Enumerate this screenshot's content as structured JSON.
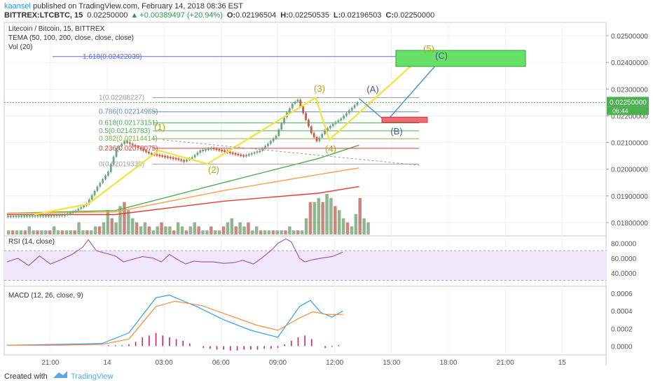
{
  "header": {
    "author": "kaansel",
    "published_text": " published on TradingView.com, February 14, 2018 08:36 EST",
    "symbol": "BITTREX:LTCBTC, 15",
    "last": "0.02250000",
    "change": "+0.00389497 (+20.94%)",
    "o_label": "O:",
    "o": "0.02196504",
    "h_label": "H:",
    "h": "0.02250535",
    "l_label": "L:",
    "l": "0.02196503",
    "c_label": "C:",
    "c": "0.02250000"
  },
  "legend": {
    "title": "Litecoin / Bitcoin, 15, BITTREX",
    "tema": "TEMA (50, 100, 200, close, close, close)",
    "vol": "Vol (20)"
  },
  "footer": {
    "created_with": "Created with",
    "brand": "TradingView"
  },
  "colors": {
    "up": "#6ba583",
    "down": "#d75442",
    "fib_blue": "#5b6fd6",
    "wave": "#f2e23a",
    "rsi": "#9c4fb5",
    "macd": "#2196f3",
    "signal": "#ff7f2a",
    "hist": "#d01f6c"
  },
  "chart_data": [
    {
      "type": "line",
      "title": "Litecoin / Bitcoin, 15, BITTREX",
      "y_axis_ticks": [
        "0.02500000",
        "0.02400000",
        "0.02300000",
        "0.02200000",
        "0.02100000",
        "0.02000000",
        "0.01900000",
        "0.01800000"
      ],
      "ylim": [
        0.0175,
        0.0255
      ],
      "x_axis_ticks": [
        "21:00",
        "14",
        "03:00",
        "06:00",
        "09:00",
        "12:00",
        "15:00",
        "18:00",
        "21:00",
        "15"
      ],
      "last_price_label": "0.02250000",
      "countdown_label": "06:44",
      "price_path": [
        [
          0,
          0.01825
        ],
        [
          8,
          0.01827
        ],
        [
          16,
          0.01828
        ],
        [
          22,
          0.0183
        ],
        [
          26,
          0.01845
        ],
        [
          30,
          0.0187
        ],
        [
          34,
          0.01935
        ],
        [
          38,
          0.0199
        ],
        [
          41,
          0.02075
        ],
        [
          44,
          0.02105
        ],
        [
          48,
          0.02085
        ],
        [
          53,
          0.0206
        ],
        [
          58,
          0.0205
        ],
        [
          63,
          0.0204
        ],
        [
          66,
          0.0203
        ],
        [
          69,
          0.02045
        ],
        [
          72,
          0.0207
        ],
        [
          76,
          0.0208
        ],
        [
          80,
          0.0207
        ],
        [
          84,
          0.0206
        ],
        [
          88,
          0.0205
        ],
        [
          91,
          0.0206
        ],
        [
          94,
          0.0207
        ],
        [
          97,
          0.02095
        ],
        [
          100,
          0.02125
        ],
        [
          103,
          0.02195
        ],
        [
          106,
          0.02245
        ],
        [
          108,
          0.0226
        ],
        [
          110,
          0.0221
        ],
        [
          113,
          0.02135
        ],
        [
          115,
          0.02105
        ],
        [
          118,
          0.02145
        ],
        [
          121,
          0.0217
        ],
        [
          124,
          0.0219
        ],
        [
          127,
          0.0222
        ],
        [
          130,
          0.0225
        ]
      ],
      "fib_levels": [
        {
          "label": "1.618(0.02422039)",
          "value": 0.02422039,
          "color": "#5b6fd6"
        },
        {
          "label": "1(0.02268227)",
          "value": 0.02268227,
          "color": "#9e9e9e"
        },
        {
          "label": "0.786(0.02214965)",
          "value": 0.02214965,
          "color": "#5b8fb8"
        },
        {
          "label": "0.618(0.02173151)",
          "value": 0.02173151,
          "color": "#4caf50"
        },
        {
          "label": "0.5(0.02143783)",
          "value": 0.02143783,
          "color": "#4caf50"
        },
        {
          "label": "0.382(0.02114414)",
          "value": 0.02114414,
          "color": "#7cb342"
        },
        {
          "label": "0.236(0.02078075)",
          "value": 0.02078075,
          "color": "#e53935"
        },
        {
          "label": "0(0.02019339)",
          "value": 0.02019339,
          "color": "#9e9e9e"
        }
      ],
      "wave_labels": [
        "(1)",
        "(2)",
        "(3)",
        "(4)",
        "(5)",
        "(A)",
        "(B)",
        "(C)"
      ],
      "tema_series": [
        {
          "values": [
            [
              0,
              0.01835
            ],
            [
              40,
              0.01845
            ],
            [
              80,
              0.0195
            ],
            [
              115,
              0.0204
            ],
            [
              130,
              0.0209
            ]
          ]
        },
        {
          "values": [
            [
              0,
              0.01835
            ],
            [
              40,
              0.0184
            ],
            [
              80,
              0.0192
            ],
            [
              115,
              0.0198
            ],
            [
              130,
              0.02005
            ]
          ]
        },
        {
          "values": [
            [
              0,
              0.0183
            ],
            [
              40,
              0.0183
            ],
            [
              80,
              0.0188
            ],
            [
              115,
              0.0191
            ],
            [
              130,
              0.01935
            ]
          ]
        }
      ]
    },
    {
      "type": "bar",
      "title": "Vol (20)",
      "values": [
        1,
        1,
        1,
        1,
        1,
        2,
        1,
        1,
        1,
        1,
        1,
        2,
        1,
        1,
        1,
        1,
        1,
        3,
        1,
        1,
        1,
        2,
        2,
        3,
        6,
        4,
        3,
        7,
        8,
        6,
        4,
        3,
        2,
        3,
        2,
        1,
        2,
        3,
        2,
        2,
        1,
        3,
        2,
        1,
        2,
        3,
        2,
        1,
        1,
        2,
        1,
        1,
        2,
        3,
        4,
        2,
        3,
        2,
        3,
        1,
        2,
        1,
        1,
        1,
        1,
        1,
        1,
        1,
        2,
        1,
        1,
        1,
        4,
        8,
        8,
        9,
        8,
        10,
        9,
        7,
        6,
        4,
        3,
        2,
        5,
        9,
        4,
        3
      ]
    },
    {
      "type": "line",
      "title": "RSI (14, close)",
      "y_axis_ticks": [
        "80.0000",
        "60.0000",
        "40.0000"
      ],
      "ylim": [
        22,
        90
      ],
      "bands": [
        70,
        30
      ],
      "values": [
        [
          0,
          55
        ],
        [
          4,
          60
        ],
        [
          8,
          50
        ],
        [
          12,
          63
        ],
        [
          16,
          52
        ],
        [
          20,
          58
        ],
        [
          24,
          65
        ],
        [
          28,
          75
        ],
        [
          30,
          85
        ],
        [
          33,
          70
        ],
        [
          37,
          66
        ],
        [
          40,
          63
        ],
        [
          43,
          55
        ],
        [
          46,
          58
        ],
        [
          50,
          62
        ],
        [
          54,
          60
        ],
        [
          57,
          55
        ],
        [
          60,
          65
        ],
        [
          63,
          58
        ],
        [
          66,
          52
        ],
        [
          69,
          56
        ],
        [
          72,
          55
        ],
        [
          76,
          55
        ],
        [
          80,
          53
        ],
        [
          84,
          54
        ],
        [
          87,
          57
        ],
        [
          91,
          52
        ],
        [
          94,
          60
        ],
        [
          98,
          72
        ],
        [
          100,
          80
        ],
        [
          103,
          86
        ],
        [
          105,
          82
        ],
        [
          108,
          60
        ],
        [
          110,
          55
        ],
        [
          113,
          58
        ],
        [
          116,
          60
        ],
        [
          120,
          62
        ],
        [
          124,
          68
        ]
      ]
    },
    {
      "type": "line",
      "title": "MACD (12, 26, close, 9)",
      "y_axis_ticks": [
        "0.0006",
        "0.0004",
        "0.0002",
        "0.0000"
      ],
      "ylim": [
        -0.0001,
        0.00068
      ],
      "series": [
        {
          "values": [
            [
              0,
              1e-05
            ],
            [
              20,
              2e-05
            ],
            [
              35,
              3e-05
            ],
            [
              45,
              0.00015
            ],
            [
              55,
              0.00055
            ],
            [
              60,
              0.00058
            ],
            [
              70,
              0.00045
            ],
            [
              80,
              0.0003
            ],
            [
              90,
              0.00018
            ],
            [
              100,
              0.0001
            ],
            [
              108,
              0.00045
            ],
            [
              112,
              0.00052
            ],
            [
              116,
              0.00038
            ],
            [
              120,
              0.00033
            ],
            [
              124,
              0.0004
            ]
          ]
        },
        {
          "values": [
            [
              0,
              1e-05
            ],
            [
              20,
              1e-05
            ],
            [
              35,
              2e-05
            ],
            [
              45,
              8e-05
            ],
            [
              55,
              0.00045
            ],
            [
              62,
              0.00051
            ],
            [
              72,
              0.00046
            ],
            [
              82,
              0.00035
            ],
            [
              92,
              0.00024
            ],
            [
              100,
              0.00018
            ],
            [
              108,
              0.00032
            ],
            [
              113,
              0.00039
            ],
            [
              118,
              0.00036
            ],
            [
              124,
              0.00036
            ]
          ]
        }
      ],
      "histogram": [
        0.0,
        0.0,
        0.0,
        1e-05,
        1e-05,
        1e-05,
        2e-05,
        5e-05,
        0.0001,
        0.00012,
        0.00015,
        0.00012,
        0.0001,
        8e-05,
        6e-05,
        3e-05,
        0.0,
        -2e-05,
        -3e-05,
        -4e-05,
        -4e-05,
        -5e-05,
        -5e-05,
        -4e-05,
        -4e-05,
        -4e-05,
        -3e-05,
        -3e-05,
        -2e-05,
        2e-05,
        6e-05,
        0.0001,
        0.00012,
        8e-05,
        0.0,
        -2e-05,
        -1e-05,
        1e-05
      ]
    }
  ]
}
